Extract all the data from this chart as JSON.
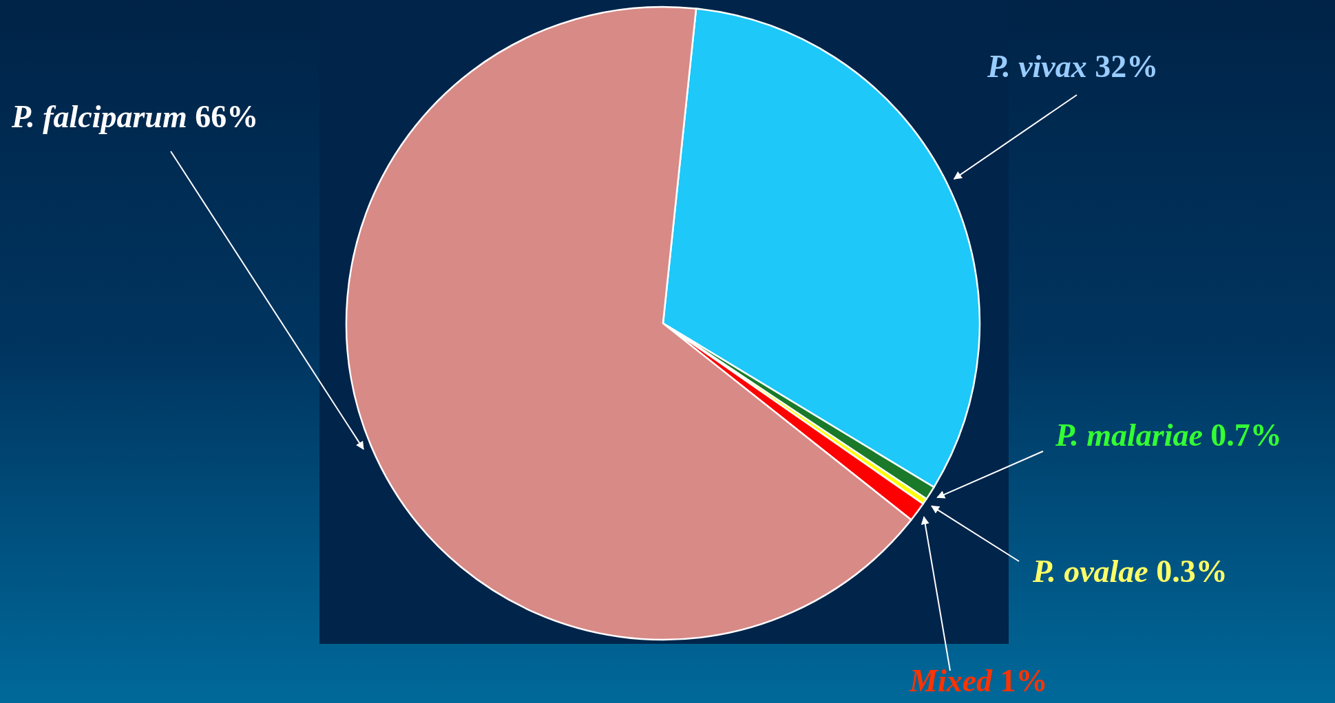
{
  "chart_data": {
    "type": "pie",
    "categories": [
      "P. vivax",
      "P. malariae",
      "P. ovalae",
      "Mixed",
      "P. falciparum"
    ],
    "values": [
      32,
      0.7,
      0.3,
      1,
      66
    ],
    "colors": [
      "#1ec8f8",
      "#1a7a2a",
      "#ffff00",
      "#ff0000",
      "#d88a86"
    ],
    "value_labels": [
      "32%",
      "0.7%",
      "0.3%",
      "1%",
      "66%"
    ]
  }
}
